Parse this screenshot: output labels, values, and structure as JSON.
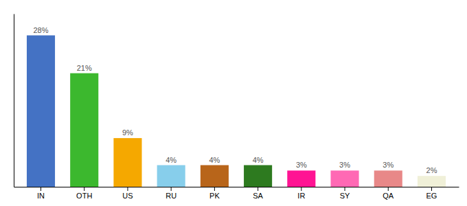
{
  "chart_data": {
    "type": "bar",
    "categories": [
      "IN",
      "OTH",
      "US",
      "RU",
      "PK",
      "SA",
      "IR",
      "SY",
      "QA",
      "EG"
    ],
    "values": [
      28,
      21,
      9,
      4,
      4,
      4,
      3,
      3,
      3,
      2
    ],
    "value_labels": [
      "28%",
      "21%",
      "9%",
      "4%",
      "4%",
      "4%",
      "3%",
      "3%",
      "3%",
      "2%"
    ],
    "colors": [
      "#4472c4",
      "#3cb82e",
      "#f5a800",
      "#87ceeb",
      "#b8651a",
      "#2d7a1f",
      "#ff1493",
      "#ff69b4",
      "#e88888",
      "#f0f0d8"
    ],
    "ylim": [
      0,
      32
    ],
    "data_labels": true,
    "tick_labels": "x",
    "grid": false
  }
}
